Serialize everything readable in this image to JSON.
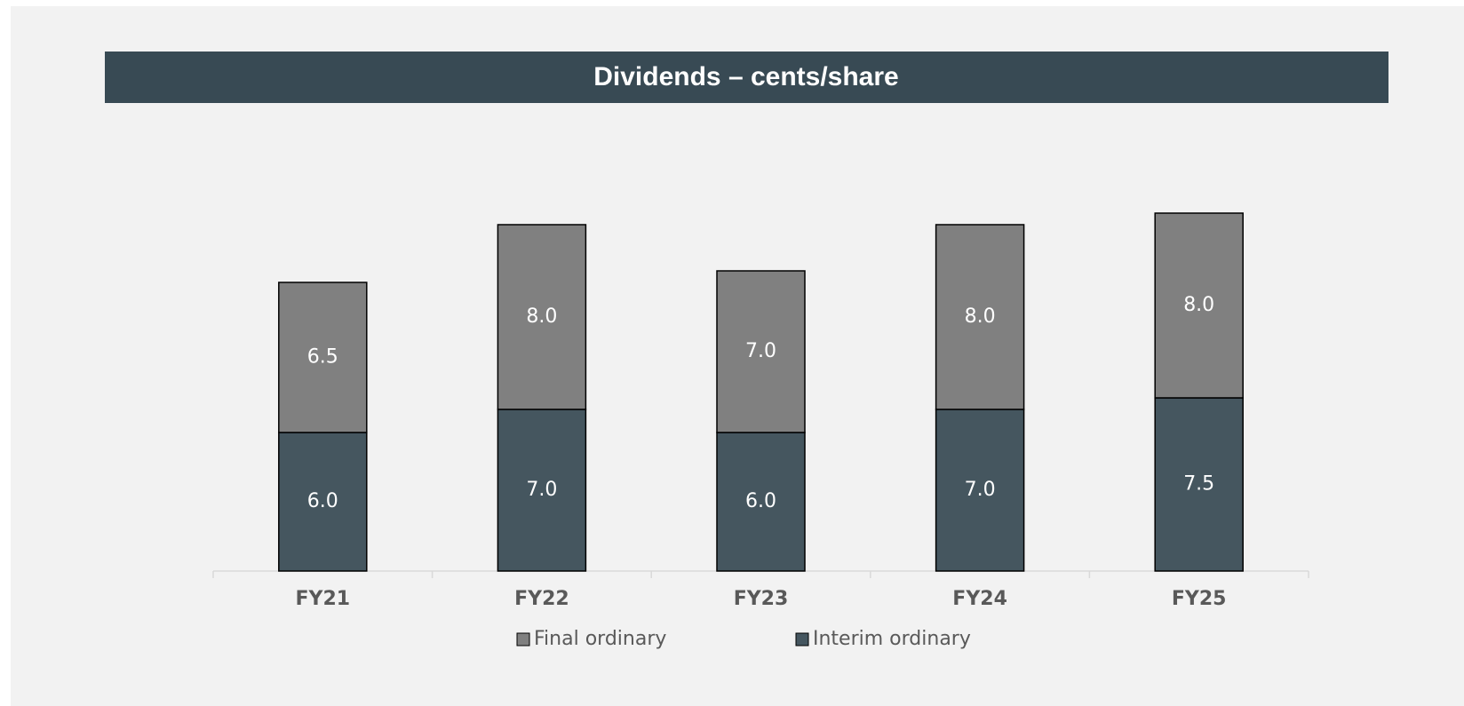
{
  "chart_data": {
    "type": "stacked_bar",
    "title": "Dividends – cents/share",
    "categories": [
      "FY21",
      "FY22",
      "FY23",
      "FY24",
      "FY25"
    ],
    "series": [
      {
        "name": "Interim ordinary",
        "color": "#45565f",
        "values": [
          6,
          7,
          6,
          7,
          7.5
        ],
        "value_labels": [
          "6.0",
          "7.0",
          "6.0",
          "7.0",
          "7.5"
        ]
      },
      {
        "name": "Final ordinary",
        "color": "#808080",
        "values": [
          6.5,
          8,
          7,
          8,
          8
        ],
        "value_labels": [
          "6.5",
          "8.0",
          "7.0",
          "8.0",
          "8.0"
        ]
      }
    ],
    "ylim": [
      0,
      18
    ],
    "legend": "bottom"
  }
}
